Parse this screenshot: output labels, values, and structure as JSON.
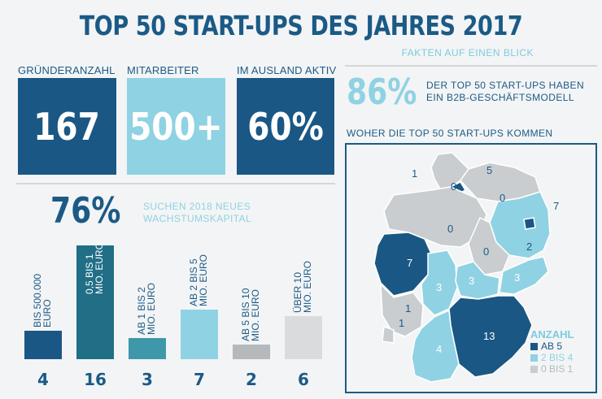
{
  "header": {
    "title": "TOP 50 START-UPS DES JAHRES 2017",
    "subtitle": "FAKTEN AUF EINEN BLICK"
  },
  "stats": [
    {
      "label": "GRÜNDERANZAHL",
      "value": "167"
    },
    {
      "label": "MITARBEITER",
      "value": "500+"
    },
    {
      "label": "IM AUSLAND AKTIV",
      "value": "60%"
    }
  ],
  "b2b": {
    "percent": "86%",
    "line1": "DER TOP 50 START-UPS HABEN",
    "line2": "EIN B2B-GESCHÄFTSMODELL"
  },
  "funding": {
    "percent": "76%",
    "line1": "SUCHEN 2018 NEUES",
    "line2": "WACHSTUMSKAPITAL"
  },
  "map": {
    "heading": "WOHER DIE TOP 50 START-UPS KOMMEN",
    "legend": {
      "title": "ANZAHL",
      "items": [
        {
          "label": "AB 5",
          "color": "#1a5784"
        },
        {
          "label": "2 BIS 4",
          "color": "#8fd2e3"
        },
        {
          "label": "0 BIS 1",
          "color": "#c9cdd0"
        }
      ]
    },
    "region_counts": [
      "1",
      "5",
      "0",
      "0",
      "7",
      "0",
      "2",
      "0",
      "7",
      "3",
      "3",
      "3",
      "1",
      "1",
      "13",
      "4"
    ]
  },
  "chart_data": {
    "type": "bar",
    "categories": [
      "BIS 500.000 EURO",
      "0,5 BIS 1 MIO. EURO",
      "AB 1 BIS 2 MIO. EURO",
      "AB 2 BIS 5 MIO. EURO",
      "AB 5 BIS 10 MIO. EURO",
      "ÜBER 10 MIO. EURO"
    ],
    "category_lines": [
      [
        "BIS 500.000",
        "EURO"
      ],
      [
        "0,5 BIS 1",
        "MIO. EURO"
      ],
      [
        "AB 1 BIS 2",
        "MIO. EURO"
      ],
      [
        "AB 2 BIS 5",
        "MIO. EURO"
      ],
      [
        "AB 5 BIS 10",
        "MIO. EURO"
      ],
      [
        "ÜBER 10",
        "MIO. EURO"
      ]
    ],
    "values": [
      4,
      16,
      3,
      7,
      2,
      6
    ],
    "value_labels": [
      "4",
      "16",
      "3",
      "7",
      "2",
      "6"
    ],
    "colors": [
      "#1a5784",
      "#216f86",
      "#3f97aa",
      "#8fd2e3",
      "#b6b9bc",
      "#d9dbdd"
    ],
    "title": "",
    "xlabel": "",
    "ylabel": "",
    "ylim": [
      0,
      16
    ]
  }
}
